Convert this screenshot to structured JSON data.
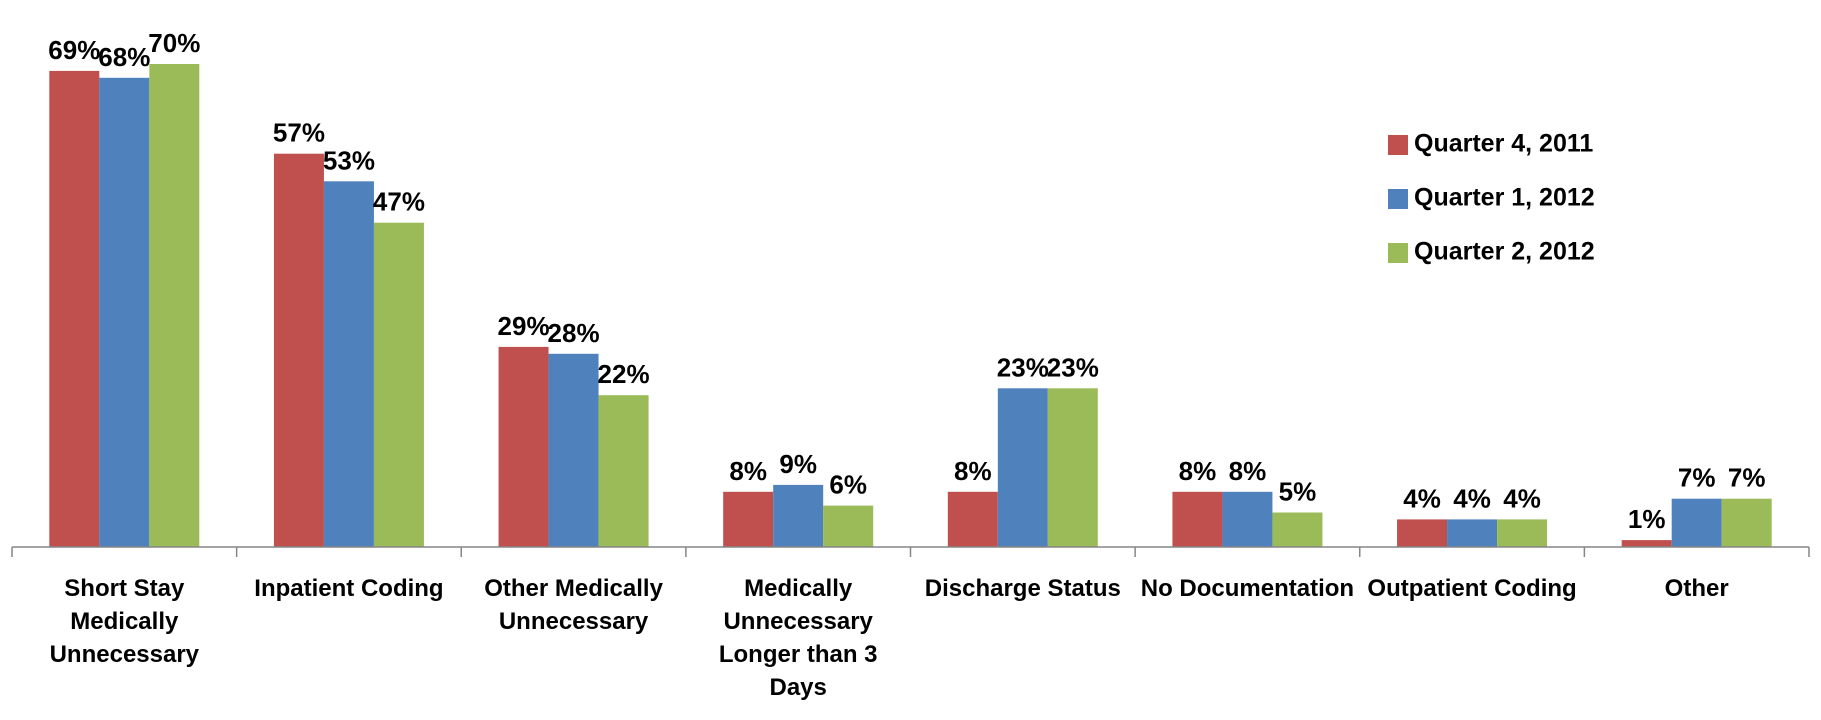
{
  "chart_data": {
    "type": "bar",
    "categories": [
      "Short Stay Medically Unnecessary",
      "Inpatient Coding",
      "Other Medically Unnecessary",
      "Medically Unnecessary Longer than 3 Days",
      "Discharge Status",
      "No Documentation",
      "Outpatient Coding",
      "Other"
    ],
    "series": [
      {
        "name": "Quarter 4, 2011",
        "color": "#c0504d",
        "values": [
          69,
          57,
          29,
          8,
          8,
          8,
          4,
          1
        ],
        "value_labels": [
          "69%",
          "57%",
          "29%",
          "8%",
          "8%",
          "8%",
          "4%",
          "1%"
        ]
      },
      {
        "name": "Quarter 1, 2012",
        "color": "#4f81bd",
        "values": [
          68,
          53,
          28,
          9,
          23,
          8,
          4,
          7
        ],
        "value_labels": [
          "68%",
          "53%",
          "28%",
          "9%",
          "23%",
          "8%",
          "4%",
          "7%"
        ]
      },
      {
        "name": "Quarter 2, 2012",
        "color": "#9bbb59",
        "values": [
          70,
          47,
          22,
          6,
          23,
          5,
          4,
          7
        ],
        "value_labels": [
          "70%",
          "47%",
          "22%",
          "6%",
          "23%",
          "5%",
          "4%",
          "7%"
        ]
      }
    ],
    "ylim": [
      0,
      70
    ],
    "legend": "right"
  }
}
